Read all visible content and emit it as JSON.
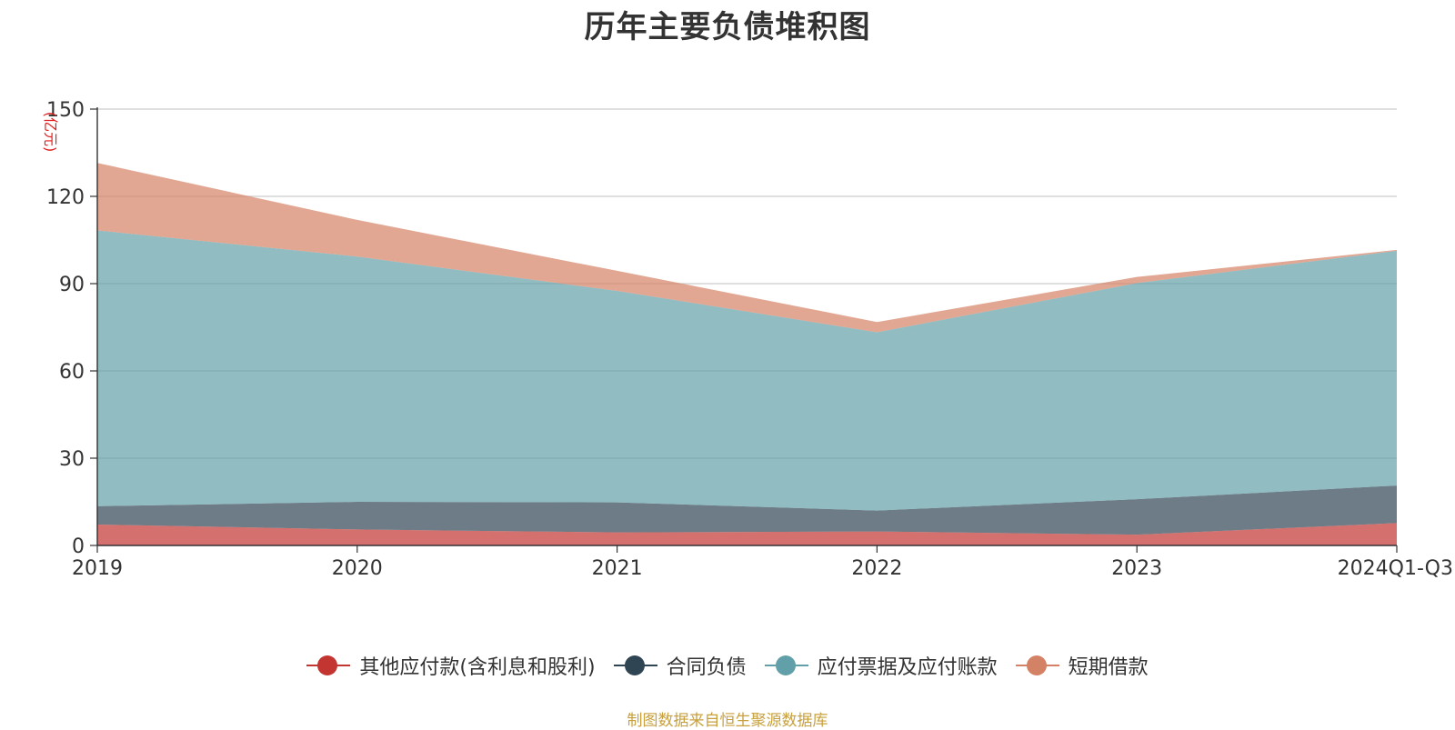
{
  "chart_data": {
    "type": "area",
    "stacked": true,
    "title": "历年主要负债堆积图",
    "ylabel": "(亿元)",
    "xlabel": "",
    "categories": [
      "2019",
      "2020",
      "2021",
      "2022",
      "2023",
      "2024Q1-Q3"
    ],
    "ylim": [
      0,
      150
    ],
    "yticks": [
      0,
      30,
      60,
      90,
      120,
      150
    ],
    "grid": true,
    "legend_position": "bottom-center",
    "series": [
      {
        "name": "其他应付款(含利息和股利)",
        "color": "#c23531",
        "values": [
          7.2,
          5.5,
          4.5,
          4.8,
          3.7,
          7.7
        ]
      },
      {
        "name": "合同负债",
        "color": "#2f4554",
        "values": [
          6.3,
          9.5,
          10.3,
          7.2,
          12.2,
          12.9
        ]
      },
      {
        "name": "应付票据及应付账款",
        "color": "#61a0a8",
        "values": [
          94.8,
          84.3,
          72.7,
          61.3,
          74.3,
          80.7
        ]
      },
      {
        "name": "短期借款",
        "color": "#d48265",
        "values": [
          23.2,
          12.6,
          6.9,
          3.5,
          2.1,
          0.3
        ]
      }
    ]
  },
  "footer": "制图数据来自恒生聚源数据库"
}
